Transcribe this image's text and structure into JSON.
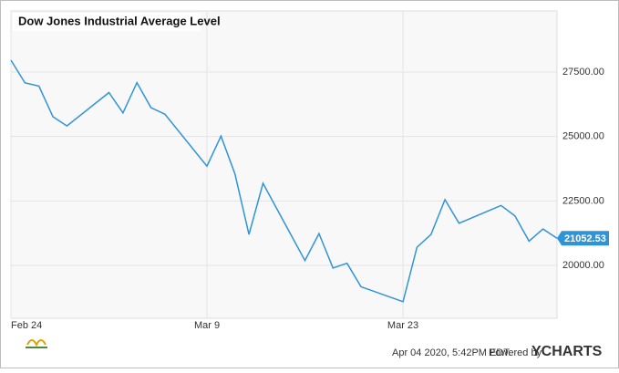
{
  "chart_data": {
    "type": "line",
    "title": "Dow Jones Industrial Average Level",
    "x": [
      "Feb 24",
      "Feb 25",
      "Feb 26",
      "Feb 27",
      "Feb 28",
      "Mar 2",
      "Mar 3",
      "Mar 4",
      "Mar 5",
      "Mar 6",
      "Mar 9",
      "Mar 10",
      "Mar 11",
      "Mar 12",
      "Mar 13",
      "Mar 16",
      "Mar 17",
      "Mar 18",
      "Mar 19",
      "Mar 20",
      "Mar 23",
      "Mar 24",
      "Mar 25",
      "Mar 26",
      "Mar 27",
      "Mar 30",
      "Mar 31",
      "Apr 1",
      "Apr 2",
      "Apr 3"
    ],
    "series": [
      {
        "name": "Dow Jones Industrial Average Level",
        "color": "#2f93d8",
        "values": [
          27960,
          27081,
          26957,
          25766,
          25409,
          26703,
          25917,
          27091,
          26121,
          25865,
          23851,
          25018,
          23553,
          21200,
          23185,
          20189,
          21237,
          19899,
          20087,
          19174,
          18592,
          20704,
          21200,
          22552,
          21637,
          22327,
          21917,
          20943,
          21413,
          21052.53
        ]
      }
    ],
    "xlim": [
      "Feb 24",
      "Apr 3"
    ],
    "xticks": [
      "Feb 24",
      "Mar 9",
      "Mar 23"
    ],
    "ylim": [
      17950,
      29870
    ],
    "yticks": [
      {
        "value": 20000,
        "label": "20000.00"
      },
      {
        "value": 22500,
        "label": "22500.00"
      },
      {
        "value": 25000,
        "label": "25000.00"
      },
      {
        "value": 27500,
        "label": "27500.00"
      }
    ],
    "grid": true,
    "footer": {
      "timestamp": "Apr 04 2020, 5:42PM EDT.",
      "powered_by": "Powered by",
      "brand": "YCHARTS"
    }
  }
}
